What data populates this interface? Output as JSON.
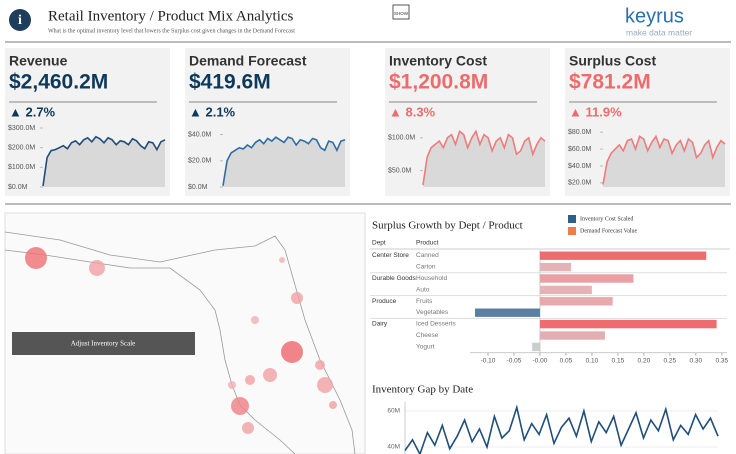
{
  "header": {
    "title": "Retail Inventory / Product Mix Analytics",
    "subtitle": "What is the optimal inventory level that lowers the Surplus cost given changes in the Demand Forecast",
    "show_button": "SHOW",
    "logo": "keyrus",
    "tagline": "make data matter"
  },
  "map": {
    "button": "Adjust Inventory Scale"
  },
  "chart_data": [
    {
      "type": "sparkline",
      "title": "Revenue",
      "kpi_value": "$2,460.2M",
      "kpi_change": "▲ 2.7%",
      "kpi_color": "#0d3a5c",
      "color": "#1f4e79",
      "ylim": [
        0,
        300
      ],
      "yticks": [
        {
          "value": 0,
          "label": "$0.0M"
        },
        {
          "value": 100,
          "label": "$100.0M"
        },
        {
          "value": 200,
          "label": "$200.0M"
        },
        {
          "value": 300,
          "label": "$300.0M"
        }
      ],
      "values": [
        5,
        150,
        185,
        190,
        200,
        210,
        195,
        225,
        235,
        215,
        240,
        250,
        230,
        255,
        245,
        225,
        250,
        240,
        215,
        235,
        230,
        215,
        245,
        235,
        210,
        195,
        230,
        225,
        190,
        230,
        240
      ]
    },
    {
      "type": "sparkline",
      "title": "Demand Forecast",
      "kpi_value": "$419.6M",
      "kpi_change": "▲ 2.1%",
      "kpi_color": "#0d3a5c",
      "color": "#2e6da4",
      "ylim": [
        0,
        45
      ],
      "yticks": [
        {
          "value": 0,
          "label": "$0.0M"
        },
        {
          "value": 20,
          "label": "$20.0M"
        },
        {
          "value": 40,
          "label": "$40.0M"
        }
      ],
      "values": [
        1,
        20,
        26,
        28,
        30,
        29,
        32,
        30,
        34,
        36,
        33,
        37,
        35,
        38,
        36,
        34,
        38,
        37,
        32,
        36,
        35,
        33,
        37,
        36,
        30,
        28,
        35,
        34,
        28,
        35,
        36
      ]
    },
    {
      "type": "sparkline",
      "title": "Inventory Cost",
      "kpi_value": "$1,200.8M",
      "kpi_change": "▲ 8.3%",
      "kpi_color": "#ef6b6b",
      "color": "#ef7b7b",
      "ylim": [
        25,
        115
      ],
      "yticks": [
        {
          "value": 50,
          "label": "$50.0M"
        },
        {
          "value": 100,
          "label": "$100.0M"
        }
      ],
      "values": [
        28,
        70,
        85,
        90,
        95,
        85,
        100,
        105,
        90,
        110,
        105,
        85,
        100,
        110,
        90,
        105,
        100,
        80,
        95,
        100,
        85,
        105,
        100,
        75,
        80,
        95,
        100,
        75,
        90,
        100,
        95
      ]
    },
    {
      "type": "sparkline",
      "title": "Surplus Cost",
      "kpi_value": "$781.2M",
      "kpi_change": "▲ 11.9%",
      "kpi_color": "#ef6b6b",
      "color": "#ef7b7b",
      "ylim": [
        15,
        85
      ],
      "yticks": [
        {
          "value": 20,
          "label": "$20.0M"
        },
        {
          "value": 40,
          "label": "$40.0M"
        },
        {
          "value": 60,
          "label": "$60.0M"
        },
        {
          "value": 80,
          "label": "$80.0M"
        }
      ],
      "values": [
        18,
        45,
        55,
        60,
        65,
        58,
        70,
        72,
        60,
        75,
        72,
        58,
        68,
        75,
        62,
        72,
        70,
        55,
        65,
        70,
        58,
        72,
        68,
        50,
        55,
        65,
        70,
        50,
        62,
        70,
        66
      ]
    },
    {
      "type": "hbar",
      "title": "Surplus Growth by Dept / Product",
      "dept_header": "Dept",
      "product_header": "Product",
      "legend": [
        {
          "name": "Inventory Cost Scaled",
          "color": "#2d5f8a"
        },
        {
          "name": "Demand Forecast Value",
          "color": "#f07c4a"
        }
      ],
      "dept": [
        "Center Store",
        null,
        "Durable Goods",
        null,
        "Produce",
        null,
        "Dairy",
        null,
        null
      ],
      "categories": [
        "Canned",
        "Carton",
        "Household",
        "Auto",
        "Fruits",
        "Vegetables",
        "Iced Desserts",
        "Cheese",
        "Yogurt"
      ],
      "values": [
        0.32,
        0.06,
        0.18,
        0.1,
        0.14,
        -0.125,
        0.34,
        0.125,
        -0.015
      ],
      "colors": [
        "#ee6b6e",
        "#e5b3b6",
        "#e8a0a4",
        "#e5b3b6",
        "#e8a9ad",
        "#5b7fa3",
        "#ee6b6e",
        "#e2aeb2",
        "#c9d0cc"
      ],
      "xlim": [
        -0.125,
        0.36
      ],
      "xticks": [
        {
          "value": -0.1,
          "label": "-0.10"
        },
        -0.05,
        {
          "value": 0,
          "label": "-0.00"
        },
        0.05,
        {
          "value": 0.1,
          "label": "0.10"
        },
        0.15,
        {
          "value": 0.2,
          "label": "0.20"
        },
        0.25,
        {
          "value": 0.3,
          "label": "0.30"
        },
        0.35
      ]
    },
    {
      "type": "line",
      "title": "Inventory Gap by Date",
      "color": "#1f4e79",
      "ylim": [
        30,
        65
      ],
      "yticks": [
        {
          "value": 40,
          "label": "40M"
        },
        {
          "value": 60,
          "label": "60M"
        }
      ],
      "values": [
        38,
        44,
        36,
        48,
        41,
        52,
        39,
        46,
        55,
        43,
        50,
        40,
        57,
        45,
        49,
        62,
        44,
        53,
        47,
        58,
        42,
        51,
        56,
        46,
        60,
        43,
        54,
        48,
        57,
        41,
        50,
        59,
        45,
        55,
        49,
        61,
        44,
        52,
        47,
        58,
        50,
        56,
        46
      ]
    }
  ]
}
